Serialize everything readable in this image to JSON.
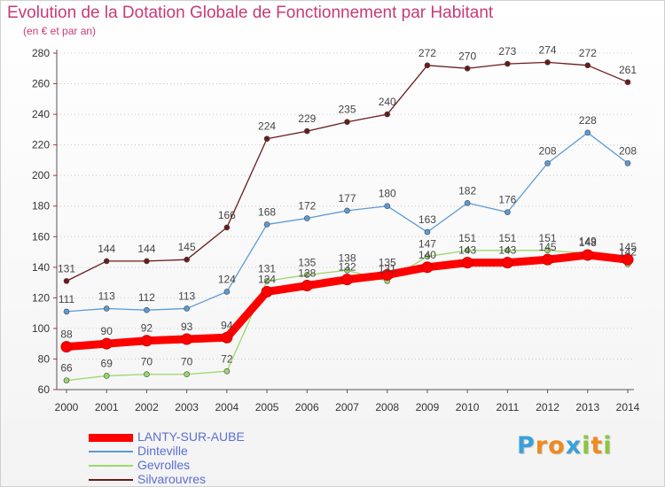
{
  "header": {
    "title": "Evolution de la Dotation Globale de Fonctionnement par Habitant",
    "subtitle": "(en € et par an)"
  },
  "chart_data": {
    "type": "line",
    "title": "Evolution de la Dotation Globale de Fonctionnement par Habitant",
    "subtitle": "(en € et par an)",
    "xlabel": "",
    "ylabel": "",
    "x": [
      "2000",
      "2001",
      "2002",
      "2003",
      "2004",
      "2005",
      "2006",
      "2007",
      "2008",
      "2009",
      "2010",
      "2011",
      "2012",
      "2013",
      "2014"
    ],
    "ylim": [
      60,
      280
    ],
    "yticks": [
      60,
      80,
      100,
      120,
      140,
      160,
      180,
      200,
      220,
      240,
      260,
      280
    ],
    "grid": "horizontal dotted",
    "legend_position": "bottom-left",
    "series": [
      {
        "name": "Silvarouvres",
        "color": "#6b1a1a",
        "values": [
          131,
          144,
          144,
          145,
          166,
          224,
          229,
          235,
          240,
          272,
          270,
          273,
          274,
          272,
          261
        ]
      },
      {
        "name": "Dinteville",
        "color": "#5b9bd5",
        "values": [
          111,
          113,
          112,
          113,
          124,
          168,
          172,
          177,
          180,
          163,
          182,
          176,
          208,
          228,
          208
        ]
      },
      {
        "name": "Gevrolles",
        "color": "#9bd86a",
        "values": [
          66,
          69,
          70,
          70,
          72,
          131,
          135,
          138,
          131,
          147,
          151,
          151,
          151,
          149,
          142
        ]
      },
      {
        "name": "LANTY-SUR-AUBE",
        "color": "#ff0000",
        "values": [
          88,
          90,
          92,
          93,
          94,
          124,
          128,
          132,
          135,
          140,
          143,
          143,
          145,
          148,
          145
        ]
      }
    ]
  },
  "legend": {
    "items": [
      {
        "label": "LANTY-SUR-AUBE",
        "color": "#ff0000"
      },
      {
        "label": "Dinteville",
        "color": "#5b9bd5"
      },
      {
        "label": "Gevrolles",
        "color": "#9bd86a"
      },
      {
        "label": "Silvarouvres",
        "color": "#6b1a1a"
      }
    ]
  },
  "logo": {
    "letters": [
      {
        "ch": "P",
        "color": "#3aa0d8"
      },
      {
        "ch": "r",
        "color": "#f08a1c"
      },
      {
        "ch": "o",
        "color": "#f08a1c"
      },
      {
        "ch": "x",
        "color": "#3aa0d8"
      },
      {
        "ch": "i",
        "color": "#8cc63f"
      },
      {
        "ch": "t",
        "color": "#f08a1c"
      },
      {
        "ch": "i",
        "color": "#8cc63f"
      }
    ]
  }
}
